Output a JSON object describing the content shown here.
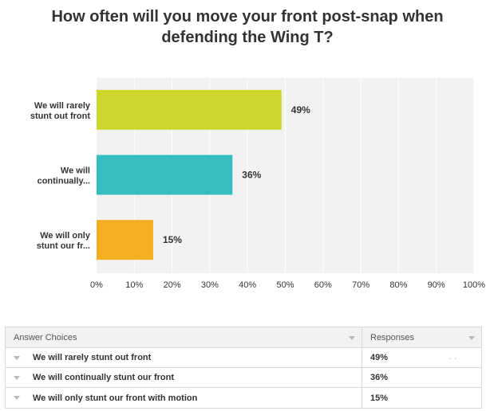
{
  "chart_data": {
    "type": "bar",
    "orientation": "horizontal",
    "title": "How often will you move your front post-snap when defending the Wing T?",
    "categories": [
      "We will rarely stunt out front",
      "We will continually...",
      "We will only stunt our fr..."
    ],
    "category_lines": [
      [
        "We will rarely",
        "stunt out front"
      ],
      [
        "We will",
        "continually..."
      ],
      [
        "We will only",
        "stunt our fr..."
      ]
    ],
    "values": [
      49,
      36,
      15
    ],
    "value_labels": [
      "49%",
      "36%",
      "15%"
    ],
    "bar_colors": [
      "#ccd62d",
      "#35bec0",
      "#f5ae22"
    ],
    "xlim": [
      0,
      100
    ],
    "xticks": [
      "0%",
      "10%",
      "20%",
      "30%",
      "40%",
      "50%",
      "60%",
      "70%",
      "80%",
      "90%",
      "100%"
    ],
    "grid": true,
    "plot_background": "#f2f2f2",
    "grid_color": "#ffffff"
  },
  "table": {
    "headers": {
      "choice": "Answer Choices",
      "responses": "Responses"
    },
    "rows": [
      {
        "choice": "We will rarely stunt out front",
        "response": "49%"
      },
      {
        "choice": "We will continually stunt our front",
        "response": "36%"
      },
      {
        "choice": "We will only stunt our front with motion",
        "response": "15%"
      }
    ]
  }
}
